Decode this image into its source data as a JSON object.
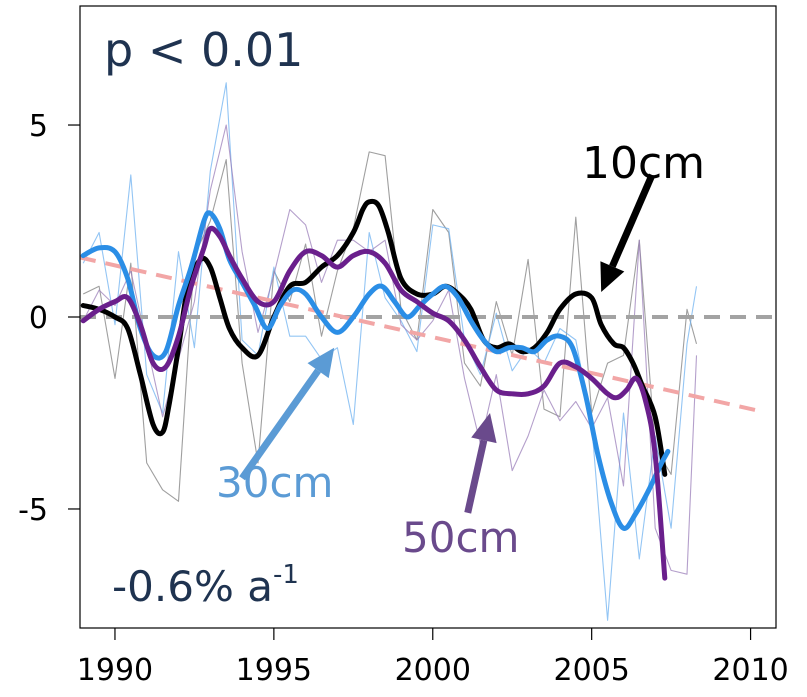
{
  "chart_data": {
    "type": "line",
    "x_ticks": [
      "1990",
      "1995",
      "2000",
      "2005",
      "2010"
    ],
    "y_ticks": [
      "5",
      "0",
      "-5"
    ],
    "xlim": [
      1988.9,
      2010.8
    ],
    "ylim": [
      -8.1,
      8.1
    ],
    "grid": false,
    "annotations": {
      "p_value": "p < 0.01",
      "trend_prefix": "-0.6% a",
      "trend_sup": "-1"
    },
    "zero_line_color": "#a3a3a3",
    "trend": {
      "color": "#f2a6a6",
      "from": [
        1988.9,
        1.55
      ],
      "to": [
        2010.3,
        -2.45
      ]
    },
    "series": [
      {
        "name": "10cm",
        "color": "#000000",
        "x": [
          1989.0,
          1989.5,
          1990.0,
          1990.4,
          1990.8,
          1991.2,
          1991.5,
          1991.7,
          1992.0,
          1992.3,
          1992.7,
          1993.0,
          1993.3,
          1993.6,
          1994.0,
          1994.5,
          1995.0,
          1995.5,
          1996.0,
          1996.5,
          1997.0,
          1997.5,
          1997.8,
          1998.0,
          1998.3,
          1998.6,
          1999.0,
          1999.5,
          2000.0,
          2000.4,
          2000.8,
          2001.2,
          2001.6,
          2002.0,
          2002.4,
          2002.8,
          2003.2,
          2003.6,
          2004.0,
          2004.5,
          2005.0,
          2005.3,
          2005.7,
          2006.0,
          2006.3,
          2006.6,
          2007.0,
          2007.3
        ],
        "y": [
          0.3,
          0.2,
          0.0,
          -0.3,
          -1.5,
          -2.8,
          -3.0,
          -2.3,
          -0.8,
          0.8,
          1.5,
          1.3,
          0.5,
          -0.3,
          -0.8,
          -1.0,
          0.0,
          0.8,
          0.9,
          1.3,
          1.6,
          2.2,
          2.8,
          3.0,
          2.9,
          2.2,
          1.0,
          0.6,
          0.6,
          0.8,
          0.6,
          0.2,
          -0.6,
          -0.8,
          -0.7,
          -0.9,
          -0.8,
          -0.4,
          0.2,
          0.6,
          0.5,
          -0.2,
          -0.7,
          -0.8,
          -1.2,
          -1.8,
          -2.6,
          -4.1
        ]
      },
      {
        "name": "30cm",
        "color": "#2b8ee6",
        "x": [
          1989.0,
          1989.5,
          1990.0,
          1990.4,
          1990.8,
          1991.2,
          1991.6,
          1992.0,
          1992.4,
          1992.8,
          1993.0,
          1993.3,
          1993.6,
          1994.0,
          1994.4,
          1994.8,
          1995.2,
          1995.6,
          1996.0,
          1996.5,
          1997.0,
          1997.5,
          1998.0,
          1998.4,
          1998.8,
          1999.2,
          1999.6,
          2000.0,
          2000.4,
          2000.8,
          2001.2,
          2001.6,
          2002.0,
          2002.4,
          2002.8,
          2003.2,
          2003.6,
          2004.0,
          2004.4,
          2004.8,
          2005.2,
          2005.6,
          2006.0,
          2006.4,
          2006.8,
          2007.2,
          2007.4
        ],
        "y": [
          1.6,
          1.8,
          1.7,
          1.0,
          -0.3,
          -1.0,
          -0.9,
          0.3,
          1.3,
          2.5,
          2.7,
          2.3,
          1.5,
          0.9,
          0.3,
          -0.3,
          0.3,
          0.7,
          0.6,
          0.0,
          -0.4,
          0.0,
          0.6,
          0.8,
          0.4,
          0.0,
          0.3,
          0.6,
          0.8,
          0.5,
          -0.1,
          -0.6,
          -0.9,
          -0.8,
          -0.8,
          -0.9,
          -0.6,
          -0.5,
          -0.8,
          -2.0,
          -3.6,
          -4.8,
          -5.5,
          -5.1,
          -4.5,
          -3.8,
          -3.5
        ]
      },
      {
        "name": "50cm",
        "color": "#6a1f8c",
        "x": [
          1989.0,
          1989.5,
          1990.0,
          1990.4,
          1990.8,
          1991.2,
          1991.6,
          1992.0,
          1992.4,
          1992.8,
          1993.0,
          1993.3,
          1993.6,
          1994.0,
          1994.5,
          1995.0,
          1995.5,
          1996.0,
          1996.5,
          1997.0,
          1997.5,
          1998.0,
          1998.5,
          1999.0,
          1999.5,
          2000.0,
          2000.5,
          2001.0,
          2001.5,
          2002.0,
          2002.5,
          2003.0,
          2003.5,
          2004.0,
          2004.5,
          2005.0,
          2005.5,
          2005.8,
          2006.1,
          2006.4,
          2006.7,
          2007.0,
          2007.3
        ],
        "y": [
          -0.1,
          0.2,
          0.4,
          0.5,
          -0.2,
          -1.2,
          -1.3,
          -0.5,
          0.8,
          1.8,
          2.3,
          2.1,
          1.6,
          1.0,
          0.4,
          0.4,
          1.2,
          1.7,
          1.6,
          1.3,
          1.6,
          1.7,
          1.4,
          0.7,
          0.4,
          0.1,
          -0.1,
          -0.6,
          -1.3,
          -1.9,
          -2.0,
          -2.0,
          -1.8,
          -1.2,
          -1.3,
          -1.6,
          -2.0,
          -2.1,
          -1.9,
          -1.6,
          -2.2,
          -3.6,
          -6.8
        ]
      }
    ],
    "raw_series": [
      {
        "name": "10cm",
        "color": "#7f7f7f",
        "x": [
          1989.0,
          1989.5,
          1990.0,
          1990.5,
          1991.0,
          1991.5,
          1992.0,
          1992.5,
          1993.0,
          1993.5,
          1994.0,
          1994.5,
          1995.0,
          1995.5,
          1996.0,
          1996.5,
          1997.0,
          1997.5,
          1998.0,
          1998.5,
          1999.0,
          1999.5,
          2000.0,
          2000.5,
          2001.0,
          2001.5,
          2002.0,
          2002.5,
          2003.0,
          2003.5,
          2004.0,
          2004.5,
          2005.0,
          2005.5,
          2006.0,
          2006.5,
          2007.0,
          2007.5,
          2008.0,
          2008.3
        ],
        "y": [
          0.6,
          0.8,
          -1.6,
          1.4,
          -3.8,
          -4.5,
          -4.8,
          1.6,
          2.5,
          4.1,
          -1.2,
          -3.8,
          1.2,
          0.4,
          1.9,
          -0.5,
          1.2,
          2.3,
          4.3,
          4.2,
          0.2,
          -0.6,
          2.8,
          2.2,
          -1.2,
          -1.8,
          0.4,
          -1.0,
          1.5,
          -2.4,
          -2.6,
          2.6,
          -2.5,
          -1.2,
          -1.0,
          2.0,
          -3.4,
          -4.1,
          0.2,
          -0.7
        ]
      },
      {
        "name": "30cm",
        "color": "#6fb2f0",
        "x": [
          1989.0,
          1989.5,
          1990.0,
          1990.5,
          1991.0,
          1991.5,
          1992.0,
          1992.5,
          1993.0,
          1993.5,
          1994.0,
          1994.5,
          1995.0,
          1995.5,
          1996.0,
          1996.5,
          1997.0,
          1997.5,
          1998.0,
          1998.5,
          1999.0,
          1999.5,
          2000.0,
          2000.5,
          2001.0,
          2001.5,
          2002.0,
          2002.5,
          2003.0,
          2003.5,
          2004.0,
          2004.5,
          2005.0,
          2005.5,
          2006.0,
          2006.5,
          2007.0,
          2007.5,
          2008.0,
          2008.3
        ],
        "y": [
          1.4,
          2.2,
          -0.2,
          3.7,
          -1.5,
          -2.5,
          1.7,
          -0.8,
          3.8,
          6.1,
          -0.6,
          -1.0,
          1.3,
          -0.5,
          -0.5,
          -1.1,
          -0.8,
          -2.8,
          2.2,
          0.5,
          -0.1,
          -0.9,
          2.4,
          2.3,
          -0.6,
          -1.5,
          0.1,
          -1.4,
          -0.8,
          -1.2,
          -0.3,
          -0.6,
          -2.8,
          -7.9,
          -2.5,
          -6.3,
          -3.1,
          -5.5,
          -0.7,
          0.8
        ]
      },
      {
        "name": "50cm",
        "color": "#9b7fba",
        "x": [
          1989.0,
          1989.5,
          1990.0,
          1990.5,
          1991.0,
          1991.5,
          1992.0,
          1992.5,
          1993.0,
          1993.5,
          1994.0,
          1994.5,
          1995.0,
          1995.5,
          1996.0,
          1996.5,
          1997.0,
          1997.5,
          1998.0,
          1998.5,
          1999.0,
          1999.5,
          2000.0,
          2000.5,
          2001.0,
          2001.5,
          2002.0,
          2002.5,
          2003.0,
          2003.5,
          2004.0,
          2004.5,
          2005.0,
          2005.5,
          2006.0,
          2006.5,
          2007.0,
          2007.5,
          2008.0,
          2008.3
        ],
        "y": [
          -0.1,
          0.7,
          0.3,
          1.2,
          -0.7,
          -2.6,
          -1.1,
          0.4,
          3.3,
          5.0,
          1.7,
          -0.4,
          1.1,
          2.8,
          2.4,
          0.9,
          2.0,
          2.0,
          1.7,
          2.0,
          -0.2,
          -0.6,
          -0.1,
          0.7,
          -1.6,
          -3.3,
          -1.5,
          -4.0,
          -3.1,
          -1.9,
          -2.7,
          -2.2,
          -2.9,
          -2.1,
          -4.4,
          2.0,
          -5.5,
          -6.6,
          -6.7,
          -1.0
        ]
      }
    ],
    "labels": [
      {
        "name": "10cm",
        "text": "10cm",
        "color": "#000000"
      },
      {
        "name": "30cm",
        "text": "30cm",
        "color": "#5b9bd5"
      },
      {
        "name": "50cm",
        "text": "50cm",
        "color": "#6a4a8c"
      }
    ],
    "arrows": [
      {
        "name": "10cm",
        "color": "#000000",
        "from": [
          2006.9,
          3.7
        ],
        "to": [
          2005.3,
          0.65
        ]
      },
      {
        "name": "30cm",
        "color": "#5b9bd5",
        "from": [
          1994.0,
          -4.2
        ],
        "to": [
          1996.9,
          -0.8
        ]
      },
      {
        "name": "50cm",
        "color": "#6a4a8c",
        "from": [
          2001.1,
          -5.1
        ],
        "to": [
          2001.8,
          -2.5
        ]
      }
    ]
  }
}
